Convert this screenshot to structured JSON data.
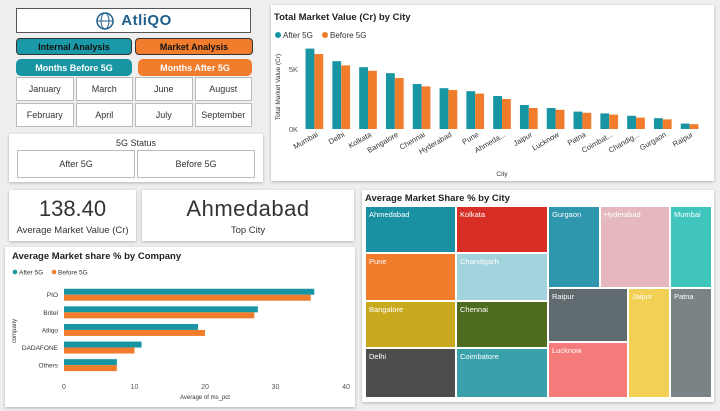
{
  "logo": {
    "text": "AtliQO"
  },
  "filters": {
    "internal_analysis": "Internal Analysis",
    "market_analysis": "Market Analysis",
    "months_before": "Months Before 5G",
    "months_after": "Months After 5G",
    "months": [
      "January",
      "March",
      "June",
      "August",
      "February",
      "April",
      "July",
      "September"
    ]
  },
  "status": {
    "title": "5G Status",
    "after": "After 5G",
    "before": "Before 5G"
  },
  "kpi": {
    "avg_market_value": "138.40",
    "avg_market_value_label": "Average Market Value (Cr)",
    "top_city": "Ahmedabad",
    "top_city_label": "Top City"
  },
  "colors": {
    "after": "#1795a2",
    "before": "#f07c2c"
  },
  "chart_data": [
    {
      "type": "bar",
      "title": "Total Market Value (Cr) by City",
      "xlabel": "City",
      "ylabel": "Total Market Value (Cr)",
      "ylim": [
        0,
        7000
      ],
      "yticks": [
        {
          "v": 0,
          "label": "0K"
        },
        {
          "v": 5000,
          "label": "5K"
        }
      ],
      "legend": [
        "After 5G",
        "Before 5G"
      ],
      "categories": [
        "Mumbai",
        "Delhi",
        "Kolkata",
        "Bangalore",
        "Chennai",
        "Hyderabad",
        "Pune",
        "Ahmeda...",
        "Jaipur",
        "Lucknow",
        "Patna",
        "Coimbat...",
        "Chandig...",
        "Gurgaon",
        "Raipur"
      ],
      "series": [
        {
          "name": "After 5G",
          "values": [
            6700,
            5650,
            5150,
            4650,
            3750,
            3400,
            3150,
            2750,
            2000,
            1750,
            1450,
            1300,
            1100,
            900,
            450
          ]
        },
        {
          "name": "Before 5G",
          "values": [
            6250,
            5300,
            4850,
            4250,
            3550,
            3250,
            2950,
            2500,
            1750,
            1600,
            1350,
            1200,
            950,
            800,
            400
          ]
        }
      ]
    },
    {
      "type": "bar",
      "orientation": "horizontal",
      "title": "Average Market share % by Company",
      "xlabel": "Average of ms_pct",
      "ylabel": "company",
      "xlim": [
        0,
        40
      ],
      "xticks": [
        0,
        10,
        20,
        30,
        40
      ],
      "legend": [
        "After 5G",
        "Before 5G"
      ],
      "categories": [
        "PIO",
        "Britel",
        "Atliqo",
        "DADAFONE",
        "Others"
      ],
      "series": [
        {
          "name": "After 5G",
          "values": [
            35.5,
            27.5,
            19.0,
            11.0,
            7.5
          ]
        },
        {
          "name": "Before 5G",
          "values": [
            35.0,
            27.0,
            20.0,
            10.0,
            7.5
          ]
        }
      ]
    },
    {
      "type": "treemap",
      "title": "Average Market Share % by City",
      "items": [
        {
          "label": "Ahmedabad",
          "color": "#1a91a2"
        },
        {
          "label": "Kolkata",
          "color": "#d72f26"
        },
        {
          "label": "Gurgaon",
          "color": "#2f97ad"
        },
        {
          "label": "Hyderabad",
          "color": "#e5b8bd"
        },
        {
          "label": "Mumbai",
          "color": "#3fc5be"
        },
        {
          "label": "Pune",
          "color": "#f07c2c"
        },
        {
          "label": "Chandigarh",
          "color": "#a3d3dc"
        },
        {
          "label": "Raipur",
          "color": "#5f6b6f"
        },
        {
          "label": "Jaipur",
          "color": "#f2cf55"
        },
        {
          "label": "Patna",
          "color": "#7a8386"
        },
        {
          "label": "Bangalore",
          "color": "#c9aa1f"
        },
        {
          "label": "Chennai",
          "color": "#4e6b1f"
        },
        {
          "label": "Lucknow",
          "color": "#f57b7b"
        },
        {
          "label": "Delhi",
          "color": "#4d4d4d"
        },
        {
          "label": "Coimbatore",
          "color": "#3aa1ab"
        }
      ]
    }
  ]
}
